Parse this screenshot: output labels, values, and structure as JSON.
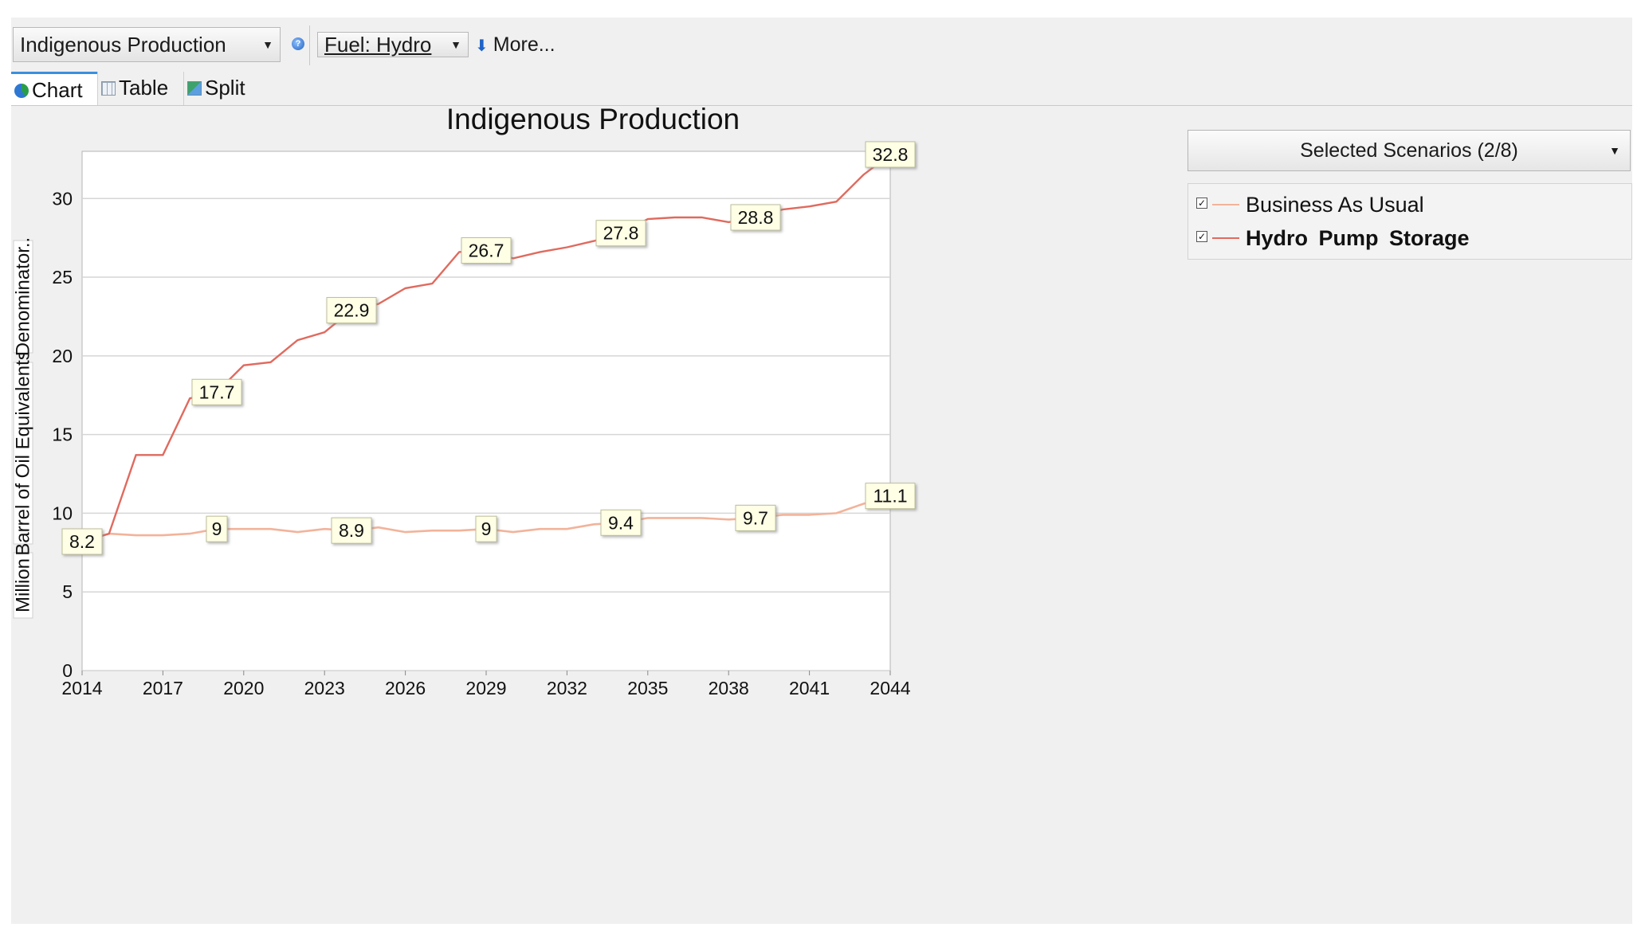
{
  "toolbar": {
    "indicator_label": "Indigenous Production",
    "fuel_label": "Fuel: Hydro",
    "more_label": "More...",
    "help_icon": "help-icon",
    "dropdown_icon": "chevron-down-icon"
  },
  "tabs": [
    {
      "label": "Chart",
      "icon": "chart-icon",
      "active": true
    },
    {
      "label": "Table",
      "icon": "table-icon",
      "active": false
    },
    {
      "label": "Split",
      "icon": "split-icon",
      "active": false
    }
  ],
  "scenarios": {
    "dropdown_label": "Selected Scenarios (2/8)",
    "items": [
      {
        "label": "Business As Usual",
        "checked": true,
        "color": "#f2b39a",
        "bold": false
      },
      {
        "label": "Hydro Pump Storage",
        "checked": true,
        "color": "#e06a5e",
        "bold": true
      }
    ]
  },
  "chart_data": {
    "type": "line",
    "title": "Indigenous Production",
    "ylabel_parts": [
      "Million",
      "Barrel of Oil Equivalents",
      "Denominator.."
    ],
    "xlabel": "",
    "xlim": [
      2014,
      2044
    ],
    "ylim": [
      0,
      33
    ],
    "yticks": [
      0,
      5,
      10,
      15,
      20,
      25,
      30
    ],
    "xticks": [
      2014,
      2017,
      2020,
      2023,
      2026,
      2029,
      2032,
      2035,
      2038,
      2041,
      2044
    ],
    "grid": true,
    "legend": "right",
    "x": [
      2014,
      2015,
      2016,
      2017,
      2018,
      2019,
      2020,
      2021,
      2022,
      2023,
      2024,
      2025,
      2026,
      2027,
      2028,
      2029,
      2030,
      2031,
      2032,
      2033,
      2034,
      2035,
      2036,
      2037,
      2038,
      2039,
      2040,
      2041,
      2042,
      2043,
      2044
    ],
    "series": [
      {
        "name": "Business As Usual",
        "color": "#f2b39a",
        "values": [
          8.2,
          8.7,
          8.6,
          8.6,
          8.7,
          9.0,
          9.0,
          9.0,
          8.8,
          9.0,
          8.9,
          9.1,
          8.8,
          8.9,
          8.9,
          9.0,
          8.8,
          9.0,
          9.0,
          9.3,
          9.4,
          9.7,
          9.7,
          9.7,
          9.6,
          9.7,
          9.9,
          9.9,
          10.0,
          10.6,
          11.1
        ],
        "labels": [
          {
            "x": 2014,
            "text": "8.2"
          },
          {
            "x": 2019,
            "text": "9"
          },
          {
            "x": 2024,
            "text": "8.9"
          },
          {
            "x": 2029,
            "text": "9"
          },
          {
            "x": 2034,
            "text": "9.4"
          },
          {
            "x": 2039,
            "text": "9.7"
          },
          {
            "x": 2044,
            "text": "11.1"
          }
        ]
      },
      {
        "name": "Hydro Pump Storage",
        "color": "#e06a5e",
        "values": [
          8.2,
          8.7,
          13.7,
          13.7,
          17.3,
          17.7,
          19.4,
          19.6,
          21.0,
          21.5,
          22.9,
          23.3,
          24.3,
          24.6,
          26.6,
          26.7,
          26.2,
          26.6,
          26.9,
          27.3,
          27.8,
          28.7,
          28.8,
          28.8,
          28.5,
          28.8,
          29.3,
          29.5,
          29.8,
          31.5,
          32.8
        ],
        "labels": [
          {
            "x": 2019,
            "text": "17.7"
          },
          {
            "x": 2024,
            "text": "22.9"
          },
          {
            "x": 2029,
            "text": "26.7"
          },
          {
            "x": 2034,
            "text": "27.8"
          },
          {
            "x": 2039,
            "text": "28.8"
          },
          {
            "x": 2044,
            "text": "32.8"
          }
        ]
      }
    ]
  }
}
